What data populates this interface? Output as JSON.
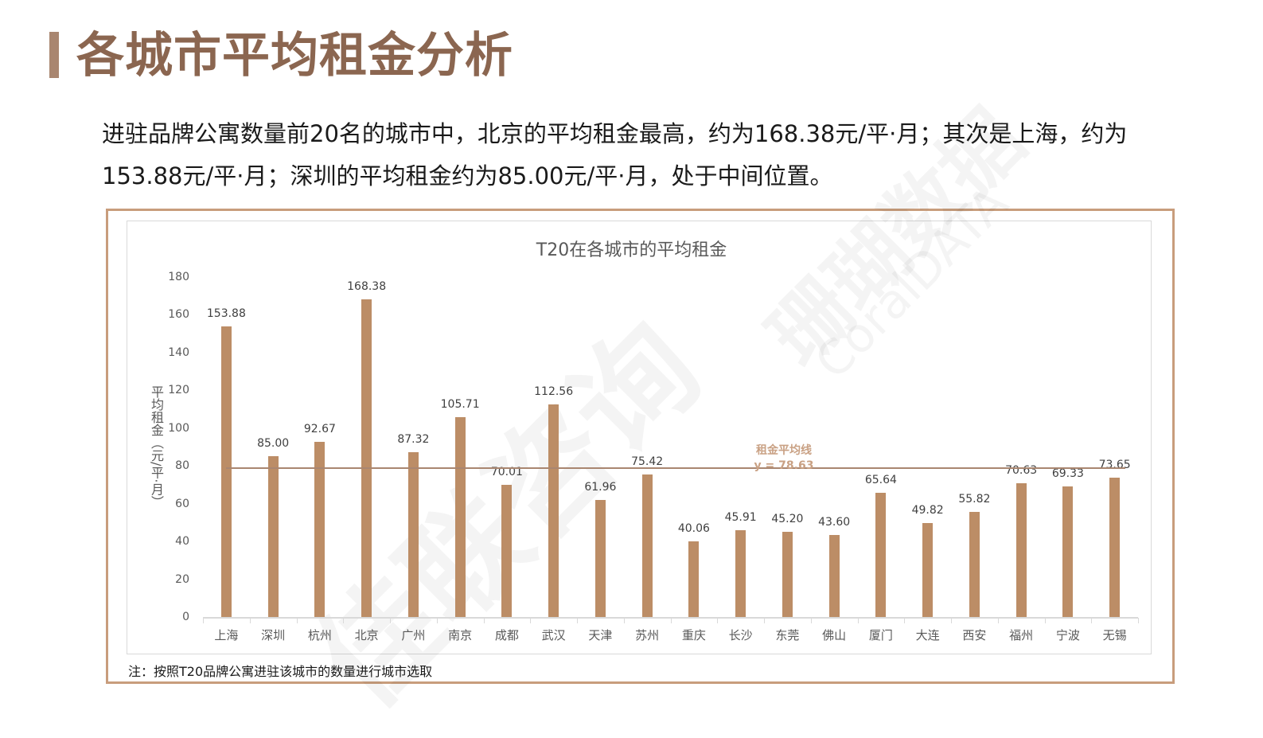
{
  "page": {
    "title": "各城市平均租金分析",
    "summary": "进驻品牌公寓数量前20名的城市中，北京的平均租金最高，约为168.38元/平·月；其次是上海，约为153.88元/平·月；深圳的平均租金约为85.00元/平·月，处于中间位置。",
    "footnote": "注：按照T20品牌公寓进驻该城市的数量进行城市选取",
    "watermarks": [
      "佳联咨询",
      "珊瑚数据",
      "CoralDATA"
    ]
  },
  "colors": {
    "bar": "#bc8d66",
    "avg_line": "#a98670",
    "title": "#8b6650",
    "frame": "#c89d7c"
  },
  "chart_data": {
    "type": "bar",
    "title": "T20在各城市的平均租金",
    "xlabel": "",
    "ylabel": "平均租金（元/平·月）",
    "ylim": [
      0,
      180
    ],
    "yticks": [
      0,
      20,
      40,
      60,
      80,
      100,
      120,
      140,
      160,
      180
    ],
    "grid": false,
    "legend": null,
    "categories": [
      "上海",
      "深圳",
      "杭州",
      "北京",
      "广州",
      "南京",
      "成都",
      "武汉",
      "天津",
      "苏州",
      "重庆",
      "长沙",
      "东莞",
      "佛山",
      "厦门",
      "大连",
      "西安",
      "福州",
      "宁波",
      "无锡"
    ],
    "values": [
      153.88,
      85.0,
      92.67,
      168.38,
      87.32,
      105.71,
      70.01,
      112.56,
      61.96,
      75.42,
      40.06,
      45.91,
      45.2,
      43.6,
      65.64,
      49.82,
      55.82,
      70.63,
      69.33,
      73.65
    ],
    "value_labels": [
      "153.88",
      "85.00",
      "92.67",
      "168.38",
      "87.32",
      "105.71",
      "70.01",
      "112.56",
      "61.96",
      "75.42",
      "40.06",
      "45.91",
      "45.20",
      "43.60",
      "65.64",
      "49.82",
      "55.82",
      "70.63",
      "69.33",
      "73.65"
    ],
    "annotations": [
      {
        "type": "hline",
        "y": 78.63,
        "label": "租金平均线",
        "text": "y = 78.63"
      }
    ]
  }
}
